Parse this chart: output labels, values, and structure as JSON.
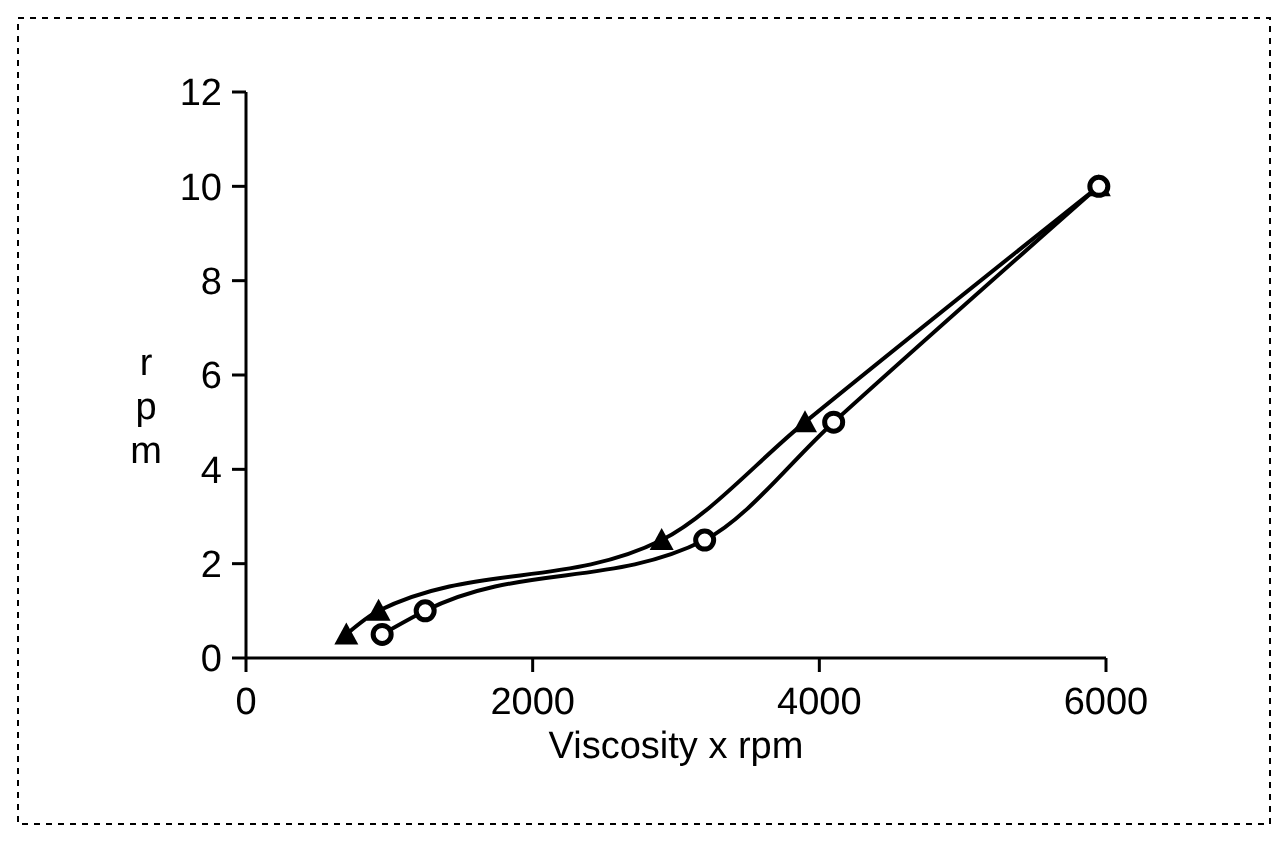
{
  "chart_data": {
    "type": "line",
    "xlabel": "Viscosity x rpm",
    "ylabel": "rpm",
    "xlim": [
      0,
      6000
    ],
    "xticks": [
      0,
      2000,
      4000,
      6000
    ],
    "ylim": [
      0,
      12
    ],
    "yticks": [
      0,
      2,
      4,
      6,
      8,
      10,
      12
    ],
    "grid": false,
    "line_style": "solid",
    "series": [
      {
        "color": "#000000",
        "marker": "triangle",
        "x": [
          700,
          925,
          2900,
          3900,
          5950
        ],
        "values": [
          0.5,
          1,
          2.5,
          5,
          10
        ]
      },
      {
        "color": "#000000",
        "marker": "circle",
        "x": [
          950,
          1250,
          3200,
          4100,
          5950
        ],
        "values": [
          0.5,
          1,
          2.5,
          5,
          10
        ]
      }
    ]
  }
}
